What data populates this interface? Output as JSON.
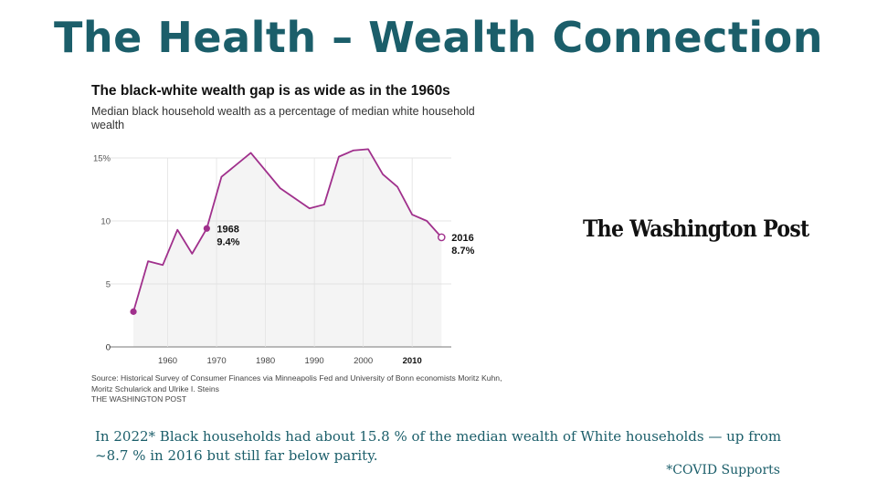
{
  "slide": {
    "title": "The Health – Wealth Connection",
    "note": "In 2022* Black households had about 15.8 % of the median wealth of White households — up from ~8.7 % in 2016 but still far below parity.",
    "footnote": "*COVID Supports"
  },
  "logo": {
    "text": "The Washington Post"
  },
  "colors": {
    "line": "#a0308c",
    "title": "#1b5e6a",
    "area": "#f4f4f4"
  },
  "chart_data": {
    "type": "line",
    "title": "The black-white wealth gap is as wide as in the 1960s",
    "subtitle": "Median black household wealth as a percentage of median white household wealth",
    "xlabel": "",
    "ylabel": "",
    "xlim": [
      1950,
      2018
    ],
    "ylim": [
      0,
      15
    ],
    "y_ticks": [
      {
        "value": 0,
        "label": "0"
      },
      {
        "value": 5,
        "label": "5"
      },
      {
        "value": 10,
        "label": "10"
      },
      {
        "value": 15,
        "label": "15%"
      }
    ],
    "x_ticks": [
      {
        "value": 1960,
        "label": "1960",
        "bold": false
      },
      {
        "value": 1970,
        "label": "1970",
        "bold": false
      },
      {
        "value": 1980,
        "label": "1980",
        "bold": false
      },
      {
        "value": 1990,
        "label": "1990",
        "bold": false
      },
      {
        "value": 2000,
        "label": "2000",
        "bold": false
      },
      {
        "value": 2010,
        "label": "2010",
        "bold": true
      }
    ],
    "x": [
      1953,
      1956,
      1959,
      1962,
      1965,
      1968,
      1971,
      1977,
      1983,
      1989,
      1992,
      1995,
      1998,
      2001,
      2004,
      2007,
      2010,
      2013,
      2016
    ],
    "y": [
      2.8,
      6.8,
      6.5,
      9.3,
      7.4,
      9.4,
      13.5,
      15.4,
      12.6,
      11.0,
      11.3,
      15.1,
      15.6,
      15.7,
      13.7,
      12.7,
      10.5,
      10.0,
      8.7
    ],
    "annotations": [
      {
        "x": 1968,
        "y": 9.4,
        "label_year": "1968",
        "label_value": "9.4%",
        "marker": "filled"
      },
      {
        "x": 2016,
        "y": 8.7,
        "label_year": "2016",
        "label_value": "8.7%",
        "marker": "hollow"
      }
    ],
    "source": "Source: Historical Survey of Consumer Finances via Minneapolis Fed and University of Bonn economists Moritz Kuhn, Moritz Schularick and Ulrike I. Steins",
    "credit": "THE WASHINGTON POST"
  }
}
